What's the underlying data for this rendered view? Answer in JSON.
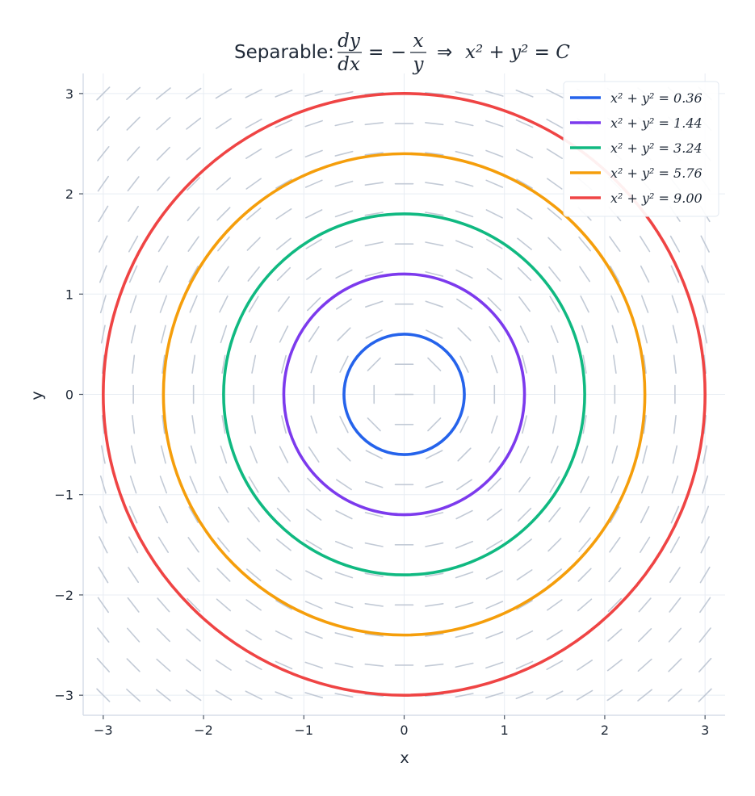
{
  "chart_data": {
    "type": "line",
    "title": {
      "prefix": "Separable:",
      "num": "dy",
      "den": "dx",
      "eq": "=",
      "minus": "−",
      "num2": "x",
      "den2": "y",
      "implies": "⇒",
      "rhs": "x² + y² = C"
    },
    "xlabel": "x",
    "ylabel": "y",
    "xlim": [
      -3.2,
      3.2
    ],
    "ylim": [
      -3.2,
      3.2
    ],
    "xticks": [
      -3,
      -2,
      -1,
      0,
      1,
      2,
      3
    ],
    "yticks": [
      -3,
      -2,
      -1,
      0,
      1,
      2,
      3
    ],
    "xtick_labels": [
      "−3",
      "−2",
      "−1",
      "0",
      "1",
      "2",
      "3"
    ],
    "ytick_labels": [
      "−3",
      "−2",
      "−1",
      "0",
      "1",
      "2",
      "3"
    ],
    "grid": true,
    "legend_position": "top-right",
    "slope_field": {
      "equation": "dy/dx = -x/y",
      "grid_step": 0.3,
      "color": "#c2cad6"
    },
    "series": [
      {
        "name": "x² + y² = 0.36",
        "C": 0.36,
        "radius": 0.6,
        "color": "#2563eb"
      },
      {
        "name": "x² + y² = 1.44",
        "C": 1.44,
        "radius": 1.2,
        "color": "#7c3aed"
      },
      {
        "name": "x² + y² = 3.24",
        "C": 3.24,
        "radius": 1.8,
        "color": "#10b981"
      },
      {
        "name": "x² + y² = 5.76",
        "C": 5.76,
        "radius": 2.4,
        "color": "#f59e0b"
      },
      {
        "name": "x² + y² = 9.00",
        "C": 9.0,
        "radius": 3.0,
        "color": "#ef4444"
      }
    ]
  }
}
